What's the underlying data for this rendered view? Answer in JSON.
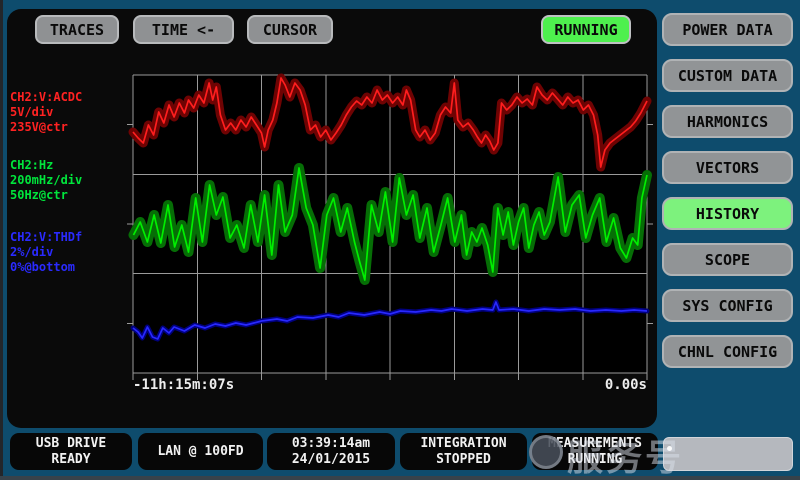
{
  "colors": {
    "frame_blue": "#0e4c6d",
    "panel_black": "#0a0a0a",
    "button_gray": "#8f9193",
    "indicator_green": "#4ef04e",
    "active_tab_green": "#7df27d",
    "trace_red": "#ff1e1e",
    "trace_green": "#00ef00",
    "trace_blue": "#2828ff"
  },
  "top_bar": {
    "buttons": [
      {
        "label": "TRACES"
      },
      {
        "label": "TIME <-"
      },
      {
        "label": "CURSOR"
      }
    ],
    "run_indicator": {
      "label": "RUNNING"
    }
  },
  "sidebar": {
    "items": [
      {
        "label": "POWER DATA",
        "active": false
      },
      {
        "label": "CUSTOM DATA",
        "active": false
      },
      {
        "label": "HARMONICS",
        "active": false
      },
      {
        "label": "VECTORS",
        "active": false
      },
      {
        "label": "HISTORY",
        "active": true
      },
      {
        "label": "SCOPE",
        "active": false
      },
      {
        "label": "SYS CONFIG",
        "active": false
      },
      {
        "label": "CHNL CONFIG",
        "active": false
      }
    ]
  },
  "channel_labels": [
    {
      "color": "#ff2222",
      "lines": [
        "CH2:V:ACDC",
        "5V/div",
        "235V@ctr"
      ]
    },
    {
      "color": "#00e53c",
      "lines": [
        "CH2:Hz",
        "200mHz/div",
        "50Hz@ctr"
      ]
    },
    {
      "color": "#2a2aff",
      "lines": [
        "CH2:V:THDf",
        "2%/div",
        "0%@bottom"
      ]
    }
  ],
  "chart_data": {
    "type": "line",
    "x_axis": {
      "start_label": "-11h:15m:07s",
      "end_label": "0.00s"
    },
    "grid": {
      "cols": 8,
      "rows": 3,
      "color": "#9a9a9a",
      "background": "#000000"
    },
    "y_units": "pixels from chart top (0-298); traces shown as mean line over min/max band",
    "series": [
      {
        "name": "CH2:V:ACDC",
        "scale": "5V/div",
        "reference": "235V@ctr",
        "color": "#ff1e1e",
        "band_color": "#6e0303",
        "band_width": 9,
        "points": [
          [
            0.0,
            57
          ],
          [
            0.01,
            63
          ],
          [
            0.02,
            68
          ],
          [
            0.03,
            50
          ],
          [
            0.04,
            60
          ],
          [
            0.05,
            37
          ],
          [
            0.06,
            48
          ],
          [
            0.07,
            30
          ],
          [
            0.08,
            42
          ],
          [
            0.09,
            28
          ],
          [
            0.1,
            38
          ],
          [
            0.108,
            25
          ],
          [
            0.118,
            33
          ],
          [
            0.128,
            20
          ],
          [
            0.138,
            28
          ],
          [
            0.148,
            8
          ],
          [
            0.155,
            25
          ],
          [
            0.162,
            12
          ],
          [
            0.17,
            40
          ],
          [
            0.18,
            55
          ],
          [
            0.19,
            48
          ],
          [
            0.2,
            55
          ],
          [
            0.21,
            45
          ],
          [
            0.22,
            52
          ],
          [
            0.23,
            42
          ],
          [
            0.24,
            50
          ],
          [
            0.25,
            58
          ],
          [
            0.256,
            72
          ],
          [
            0.263,
            55
          ],
          [
            0.272,
            45
          ],
          [
            0.28,
            28
          ],
          [
            0.288,
            3
          ],
          [
            0.296,
            10
          ],
          [
            0.305,
            22
          ],
          [
            0.315,
            8
          ],
          [
            0.325,
            15
          ],
          [
            0.335,
            30
          ],
          [
            0.345,
            55
          ],
          [
            0.355,
            50
          ],
          [
            0.365,
            62
          ],
          [
            0.375,
            55
          ],
          [
            0.385,
            65
          ],
          [
            0.395,
            58
          ],
          [
            0.405,
            50
          ],
          [
            0.415,
            40
          ],
          [
            0.425,
            32
          ],
          [
            0.435,
            26
          ],
          [
            0.445,
            30
          ],
          [
            0.455,
            22
          ],
          [
            0.465,
            28
          ],
          [
            0.475,
            15
          ],
          [
            0.485,
            25
          ],
          [
            0.495,
            20
          ],
          [
            0.505,
            28
          ],
          [
            0.515,
            22
          ],
          [
            0.525,
            30
          ],
          [
            0.532,
            15
          ],
          [
            0.54,
            25
          ],
          [
            0.55,
            55
          ],
          [
            0.558,
            62
          ],
          [
            0.568,
            55
          ],
          [
            0.578,
            65
          ],
          [
            0.588,
            58
          ],
          [
            0.598,
            40
          ],
          [
            0.608,
            32
          ],
          [
            0.618,
            38
          ],
          [
            0.625,
            8
          ],
          [
            0.632,
            45
          ],
          [
            0.642,
            52
          ],
          [
            0.652,
            48
          ],
          [
            0.662,
            55
          ],
          [
            0.67,
            62
          ],
          [
            0.678,
            68
          ],
          [
            0.686,
            60
          ],
          [
            0.694,
            66
          ],
          [
            0.702,
            75
          ],
          [
            0.71,
            68
          ],
          [
            0.717,
            28
          ],
          [
            0.727,
            35
          ],
          [
            0.737,
            30
          ],
          [
            0.747,
            22
          ],
          [
            0.757,
            28
          ],
          [
            0.767,
            24
          ],
          [
            0.777,
            30
          ],
          [
            0.786,
            12
          ],
          [
            0.796,
            20
          ],
          [
            0.806,
            25
          ],
          [
            0.816,
            18
          ],
          [
            0.826,
            24
          ],
          [
            0.836,
            30
          ],
          [
            0.846,
            22
          ],
          [
            0.856,
            28
          ],
          [
            0.866,
            25
          ],
          [
            0.876,
            35
          ],
          [
            0.886,
            30
          ],
          [
            0.896,
            40
          ],
          [
            0.904,
            60
          ],
          [
            0.91,
            92
          ],
          [
            0.918,
            75
          ],
          [
            0.928,
            68
          ],
          [
            0.938,
            64
          ],
          [
            0.948,
            60
          ],
          [
            0.958,
            56
          ],
          [
            0.968,
            52
          ],
          [
            0.978,
            46
          ],
          [
            0.988,
            38
          ],
          [
            1.0,
            26
          ]
        ]
      },
      {
        "name": "CH2:Hz",
        "scale": "200mHz/div",
        "reference": "50Hz@ctr",
        "color": "#00ef00",
        "band_color": "#066e06",
        "band_width": 10,
        "points": [
          [
            0.001,
            160
          ],
          [
            0.014,
            147
          ],
          [
            0.028,
            167
          ],
          [
            0.041,
            140
          ],
          [
            0.054,
            168
          ],
          [
            0.068,
            130
          ],
          [
            0.081,
            172
          ],
          [
            0.095,
            150
          ],
          [
            0.108,
            177
          ],
          [
            0.122,
            123
          ],
          [
            0.135,
            167
          ],
          [
            0.149,
            110
          ],
          [
            0.162,
            140
          ],
          [
            0.175,
            122
          ],
          [
            0.189,
            163
          ],
          [
            0.202,
            150
          ],
          [
            0.216,
            173
          ],
          [
            0.229,
            130
          ],
          [
            0.243,
            167
          ],
          [
            0.256,
            120
          ],
          [
            0.27,
            180
          ],
          [
            0.283,
            110
          ],
          [
            0.296,
            157
          ],
          [
            0.31,
            140
          ],
          [
            0.323,
            93
          ],
          [
            0.337,
            133
          ],
          [
            0.35,
            150
          ],
          [
            0.364,
            193
          ],
          [
            0.377,
            140
          ],
          [
            0.39,
            123
          ],
          [
            0.404,
            157
          ],
          [
            0.417,
            133
          ],
          [
            0.431,
            167
          ],
          [
            0.441,
            187
          ],
          [
            0.451,
            205
          ],
          [
            0.464,
            130
          ],
          [
            0.478,
            157
          ],
          [
            0.491,
            117
          ],
          [
            0.505,
            167
          ],
          [
            0.518,
            103
          ],
          [
            0.532,
            140
          ],
          [
            0.545,
            120
          ],
          [
            0.558,
            163
          ],
          [
            0.572,
            133
          ],
          [
            0.585,
            177
          ],
          [
            0.599,
            150
          ],
          [
            0.612,
            123
          ],
          [
            0.626,
            167
          ],
          [
            0.639,
            140
          ],
          [
            0.649,
            180
          ],
          [
            0.659,
            157
          ],
          [
            0.669,
            167
          ],
          [
            0.679,
            153
          ],
          [
            0.69,
            170
          ],
          [
            0.7,
            197
          ],
          [
            0.71,
            133
          ],
          [
            0.72,
            160
          ],
          [
            0.73,
            137
          ],
          [
            0.74,
            170
          ],
          [
            0.75,
            147
          ],
          [
            0.76,
            133
          ],
          [
            0.77,
            173
          ],
          [
            0.78,
            150
          ],
          [
            0.79,
            137
          ],
          [
            0.8,
            160
          ],
          [
            0.811,
            147
          ],
          [
            0.827,
            102
          ],
          [
            0.841,
            157
          ],
          [
            0.854,
            130
          ],
          [
            0.868,
            120
          ],
          [
            0.881,
            163
          ],
          [
            0.894,
            140
          ],
          [
            0.908,
            123
          ],
          [
            0.921,
            167
          ],
          [
            0.935,
            143
          ],
          [
            0.948,
            173
          ],
          [
            0.96,
            183
          ],
          [
            0.972,
            163
          ],
          [
            0.982,
            170
          ],
          [
            0.99,
            123
          ],
          [
            1.0,
            100
          ]
        ]
      },
      {
        "name": "CH2:V:THDf",
        "scale": "2%/div",
        "reference": "0%@bottom",
        "color": "#2828ff",
        "band_color": "#00007d",
        "band_width": 5,
        "points": [
          [
            0.0,
            253
          ],
          [
            0.01,
            257
          ],
          [
            0.018,
            263
          ],
          [
            0.028,
            252
          ],
          [
            0.038,
            262
          ],
          [
            0.048,
            264
          ],
          [
            0.058,
            253
          ],
          [
            0.07,
            258
          ],
          [
            0.08,
            252
          ],
          [
            0.1,
            256
          ],
          [
            0.12,
            250
          ],
          [
            0.14,
            253
          ],
          [
            0.16,
            249
          ],
          [
            0.18,
            251
          ],
          [
            0.2,
            248
          ],
          [
            0.22,
            250
          ],
          [
            0.25,
            246
          ],
          [
            0.28,
            244
          ],
          [
            0.3,
            246
          ],
          [
            0.32,
            242
          ],
          [
            0.35,
            243
          ],
          [
            0.38,
            240
          ],
          [
            0.4,
            242
          ],
          [
            0.42,
            238
          ],
          [
            0.45,
            240
          ],
          [
            0.48,
            237
          ],
          [
            0.5,
            239
          ],
          [
            0.52,
            236
          ],
          [
            0.55,
            237
          ],
          [
            0.58,
            235
          ],
          [
            0.6,
            236
          ],
          [
            0.62,
            234
          ],
          [
            0.65,
            236
          ],
          [
            0.68,
            234
          ],
          [
            0.7,
            235
          ],
          [
            0.706,
            227
          ],
          [
            0.712,
            235
          ],
          [
            0.74,
            234
          ],
          [
            0.77,
            236
          ],
          [
            0.8,
            234
          ],
          [
            0.83,
            235
          ],
          [
            0.86,
            234
          ],
          [
            0.89,
            236
          ],
          [
            0.92,
            235
          ],
          [
            0.95,
            236
          ],
          [
            0.975,
            235
          ],
          [
            1.0,
            236
          ]
        ]
      }
    ]
  },
  "status_bar": {
    "boxes": [
      {
        "lines": [
          "USB DRIVE",
          "READY"
        ]
      },
      {
        "lines": [
          "LAN @ 100FD"
        ]
      },
      {
        "lines": [
          "03:39:14am",
          "24/01/2015"
        ]
      },
      {
        "lines": [
          "INTEGRATION",
          "STOPPED"
        ]
      },
      {
        "lines": [
          "MEASUREMENTS",
          "RUNNING"
        ]
      }
    ]
  },
  "watermark": {
    "text": "服务号"
  }
}
